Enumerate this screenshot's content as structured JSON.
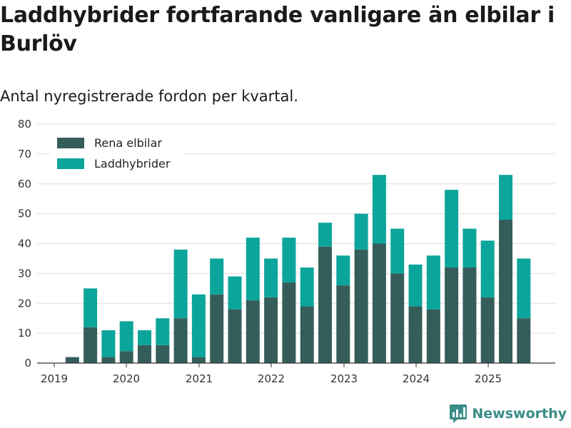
{
  "colors": {
    "electric": "#355e5a",
    "hybrid": "#0ca59b",
    "grid": "#dddddd",
    "axis": "#333333",
    "brand": "#3a8c86"
  },
  "branding": {
    "name": "Newsworthy",
    "icon": "bar-chart-logo-icon"
  },
  "chart_data": {
    "type": "bar",
    "stacked": true,
    "title": "Laddhybrider fortfarande vanligare än elbilar i Burlöv",
    "subtitle": "Antal nyregistrerade fordon per kvartal.",
    "xlabel": "",
    "ylabel": "",
    "ylim": [
      0,
      80
    ],
    "yticks": [
      0,
      10,
      20,
      30,
      40,
      50,
      60,
      70,
      80
    ],
    "grid": true,
    "legend_position": "top-left",
    "categories": [
      "2019 Q1",
      "2019 Q2",
      "2019 Q3",
      "2019 Q4",
      "2020 Q1",
      "2020 Q2",
      "2020 Q3",
      "2020 Q4",
      "2021 Q1",
      "2021 Q2",
      "2021 Q3",
      "2021 Q4",
      "2022 Q1",
      "2022 Q2",
      "2022 Q3",
      "2022 Q4",
      "2023 Q1",
      "2023 Q2",
      "2023 Q3",
      "2023 Q4",
      "2024 Q1",
      "2024 Q2",
      "2024 Q3",
      "2024 Q4",
      "2025 Q1",
      "2025 Q2",
      "2025 Q3"
    ],
    "x_tick_labels": [
      "2019",
      "2020",
      "2021",
      "2022",
      "2023",
      "2024",
      "2025"
    ],
    "series": [
      {
        "name": "Rena elbilar",
        "values": [
          0,
          2,
          12,
          2,
          4,
          6,
          6,
          15,
          2,
          23,
          18,
          21,
          22,
          27,
          19,
          39,
          26,
          38,
          40,
          30,
          19,
          18,
          32,
          32,
          22,
          48,
          15
        ]
      },
      {
        "name": "Laddhybrider",
        "values": [
          0,
          0,
          13,
          9,
          10,
          5,
          9,
          23,
          21,
          12,
          11,
          21,
          13,
          15,
          13,
          8,
          10,
          12,
          23,
          15,
          14,
          18,
          26,
          13,
          19,
          15,
          20
        ]
      }
    ]
  }
}
